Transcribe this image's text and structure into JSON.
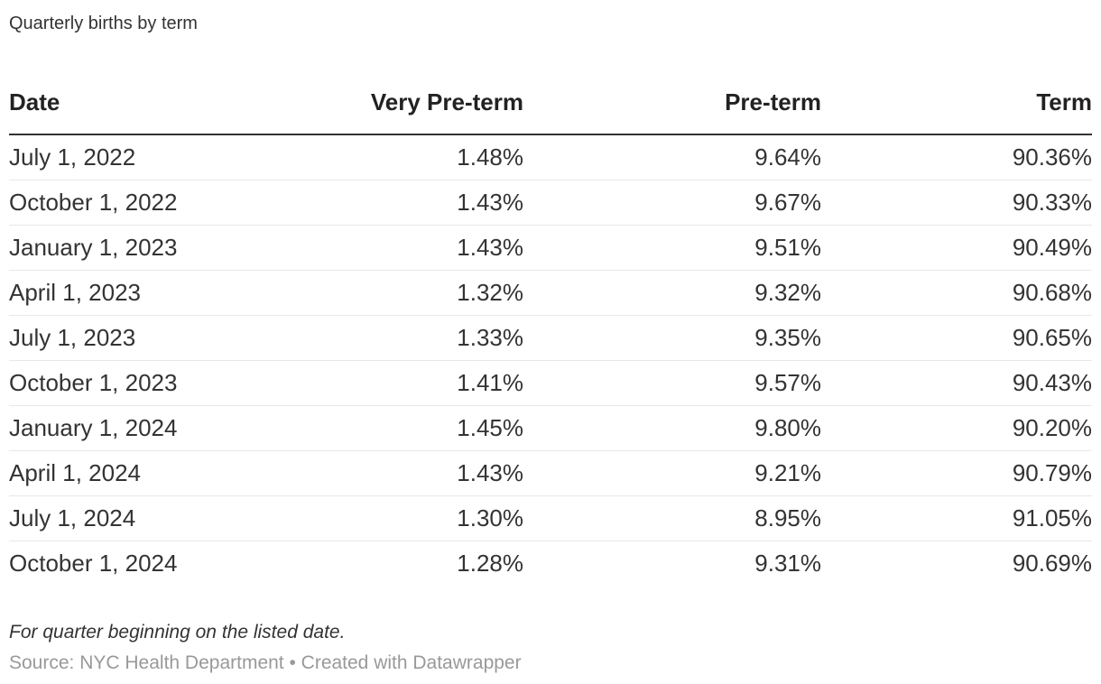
{
  "header": {
    "title": "Quarterly births by term"
  },
  "table": {
    "columns": [
      "Date",
      "Very Pre-term",
      "Pre-term",
      "Term"
    ],
    "rows": [
      [
        "July 1, 2022",
        "1.48%",
        "9.64%",
        "90.36%"
      ],
      [
        "October 1, 2022",
        "1.43%",
        "9.67%",
        "90.33%"
      ],
      [
        "January 1, 2023",
        "1.43%",
        "9.51%",
        "90.49%"
      ],
      [
        "April 1, 2023",
        "1.32%",
        "9.32%",
        "90.68%"
      ],
      [
        "July 1, 2023",
        "1.33%",
        "9.35%",
        "90.65%"
      ],
      [
        "October 1, 2023",
        "1.41%",
        "9.57%",
        "90.43%"
      ],
      [
        "January 1, 2024",
        "1.45%",
        "9.80%",
        "90.20%"
      ],
      [
        "April 1, 2024",
        "1.43%",
        "9.21%",
        "90.79%"
      ],
      [
        "July 1, 2024",
        "1.30%",
        "8.95%",
        "91.05%"
      ],
      [
        "October 1, 2024",
        "1.28%",
        "9.31%",
        "90.69%"
      ]
    ]
  },
  "footer": {
    "footnote": "For quarter beginning on the listed date.",
    "source": "Source: NYC Health Department • Created with Datawrapper"
  },
  "colors": {
    "text": "#333333",
    "header_text": "#222222",
    "header_rule": "#333333",
    "row_rule": "#e8e8e8",
    "source_text": "#999999",
    "background": "#ffffff"
  },
  "chart_data": {
    "type": "table",
    "title": "Quarterly births by term",
    "categories": [
      "July 1, 2022",
      "October 1, 2022",
      "January 1, 2023",
      "April 1, 2023",
      "July 1, 2023",
      "October 1, 2023",
      "January 1, 2024",
      "April 1, 2024",
      "July 1, 2024",
      "October 1, 2024"
    ],
    "series": [
      {
        "name": "Very Pre-term",
        "values": [
          1.48,
          1.43,
          1.43,
          1.32,
          1.33,
          1.41,
          1.45,
          1.43,
          1.3,
          1.28
        ]
      },
      {
        "name": "Pre-term",
        "values": [
          9.64,
          9.67,
          9.51,
          9.32,
          9.35,
          9.57,
          9.8,
          9.21,
          8.95,
          9.31
        ]
      },
      {
        "name": "Term",
        "values": [
          90.36,
          90.33,
          90.49,
          90.68,
          90.65,
          90.43,
          90.2,
          90.79,
          91.05,
          90.69
        ]
      }
    ],
    "unit": "%",
    "footnote": "For quarter beginning on the listed date.",
    "source": "NYC Health Department"
  }
}
